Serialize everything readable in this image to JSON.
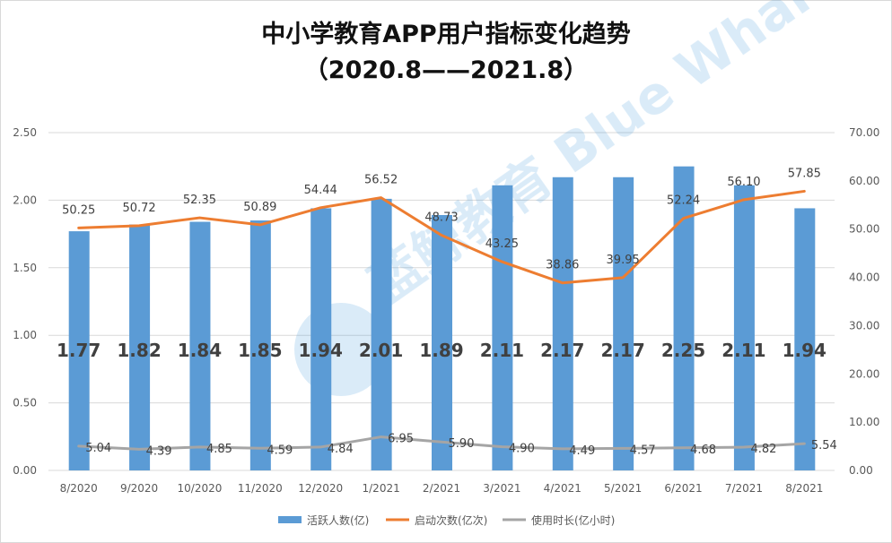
{
  "chart_data": {
    "type": "bar+line",
    "title": "中小学教育APP用户指标变化趋势",
    "subtitle": "（2020.8——2021.8）",
    "categories": [
      "8/2020",
      "9/2020",
      "10/2020",
      "11/2020",
      "12/2020",
      "1/2021",
      "2/2021",
      "3/2021",
      "4/2021",
      "5/2021",
      "6/2021",
      "7/2021",
      "8/2021"
    ],
    "y_left": {
      "min": 0,
      "max": 2.5,
      "step": 0.5,
      "tick_labels": [
        "0.00",
        "0.50",
        "1.00",
        "1.50",
        "2.00",
        "2.50"
      ]
    },
    "y_right": {
      "min": 0,
      "max": 70,
      "step": 10,
      "tick_labels": [
        "0.00",
        "10.00",
        "20.00",
        "30.00",
        "40.00",
        "50.00",
        "60.00",
        "70.00"
      ]
    },
    "series": [
      {
        "name": "活跃人数(亿)",
        "type": "bar",
        "axis": "left",
        "color": "#5b9bd5",
        "values": [
          1.77,
          1.82,
          1.84,
          1.85,
          1.94,
          2.01,
          1.89,
          2.11,
          2.17,
          2.17,
          2.25,
          2.11,
          1.94
        ],
        "labels": [
          "1.77",
          "1.82",
          "1.84",
          "1.85",
          "1.94",
          "2.01",
          "1.89",
          "2.11",
          "2.17",
          "2.17",
          "2.25",
          "2.11",
          "1.94"
        ]
      },
      {
        "name": "启动次数(亿次)",
        "type": "line",
        "axis": "right",
        "color": "#ed7d31",
        "values": [
          50.25,
          50.72,
          52.35,
          50.89,
          54.44,
          56.52,
          48.73,
          43.25,
          38.86,
          39.95,
          52.24,
          56.1,
          57.85
        ],
        "labels": [
          "50.25",
          "50.72",
          "52.35",
          "50.89",
          "54.44",
          "56.52",
          "48.73",
          "43.25",
          "38.86",
          "39.95",
          "52.24",
          "56.10",
          "57.85"
        ]
      },
      {
        "name": "使用时长(亿小时)",
        "type": "line",
        "axis": "right",
        "color": "#a5a5a5",
        "values": [
          5.04,
          4.39,
          4.85,
          4.59,
          4.84,
          6.95,
          5.9,
          4.9,
          4.49,
          4.57,
          4.68,
          4.82,
          5.54
        ],
        "labels": [
          "5.04",
          "4.39",
          "4.85",
          "4.59",
          "4.84",
          "6.95",
          "5.90",
          "4.90",
          "4.49",
          "4.57",
          "4.68",
          "4.82",
          "5.54"
        ]
      }
    ],
    "legend_position": "bottom",
    "watermark": "蓝鲸教育 Blue Whale Education"
  }
}
